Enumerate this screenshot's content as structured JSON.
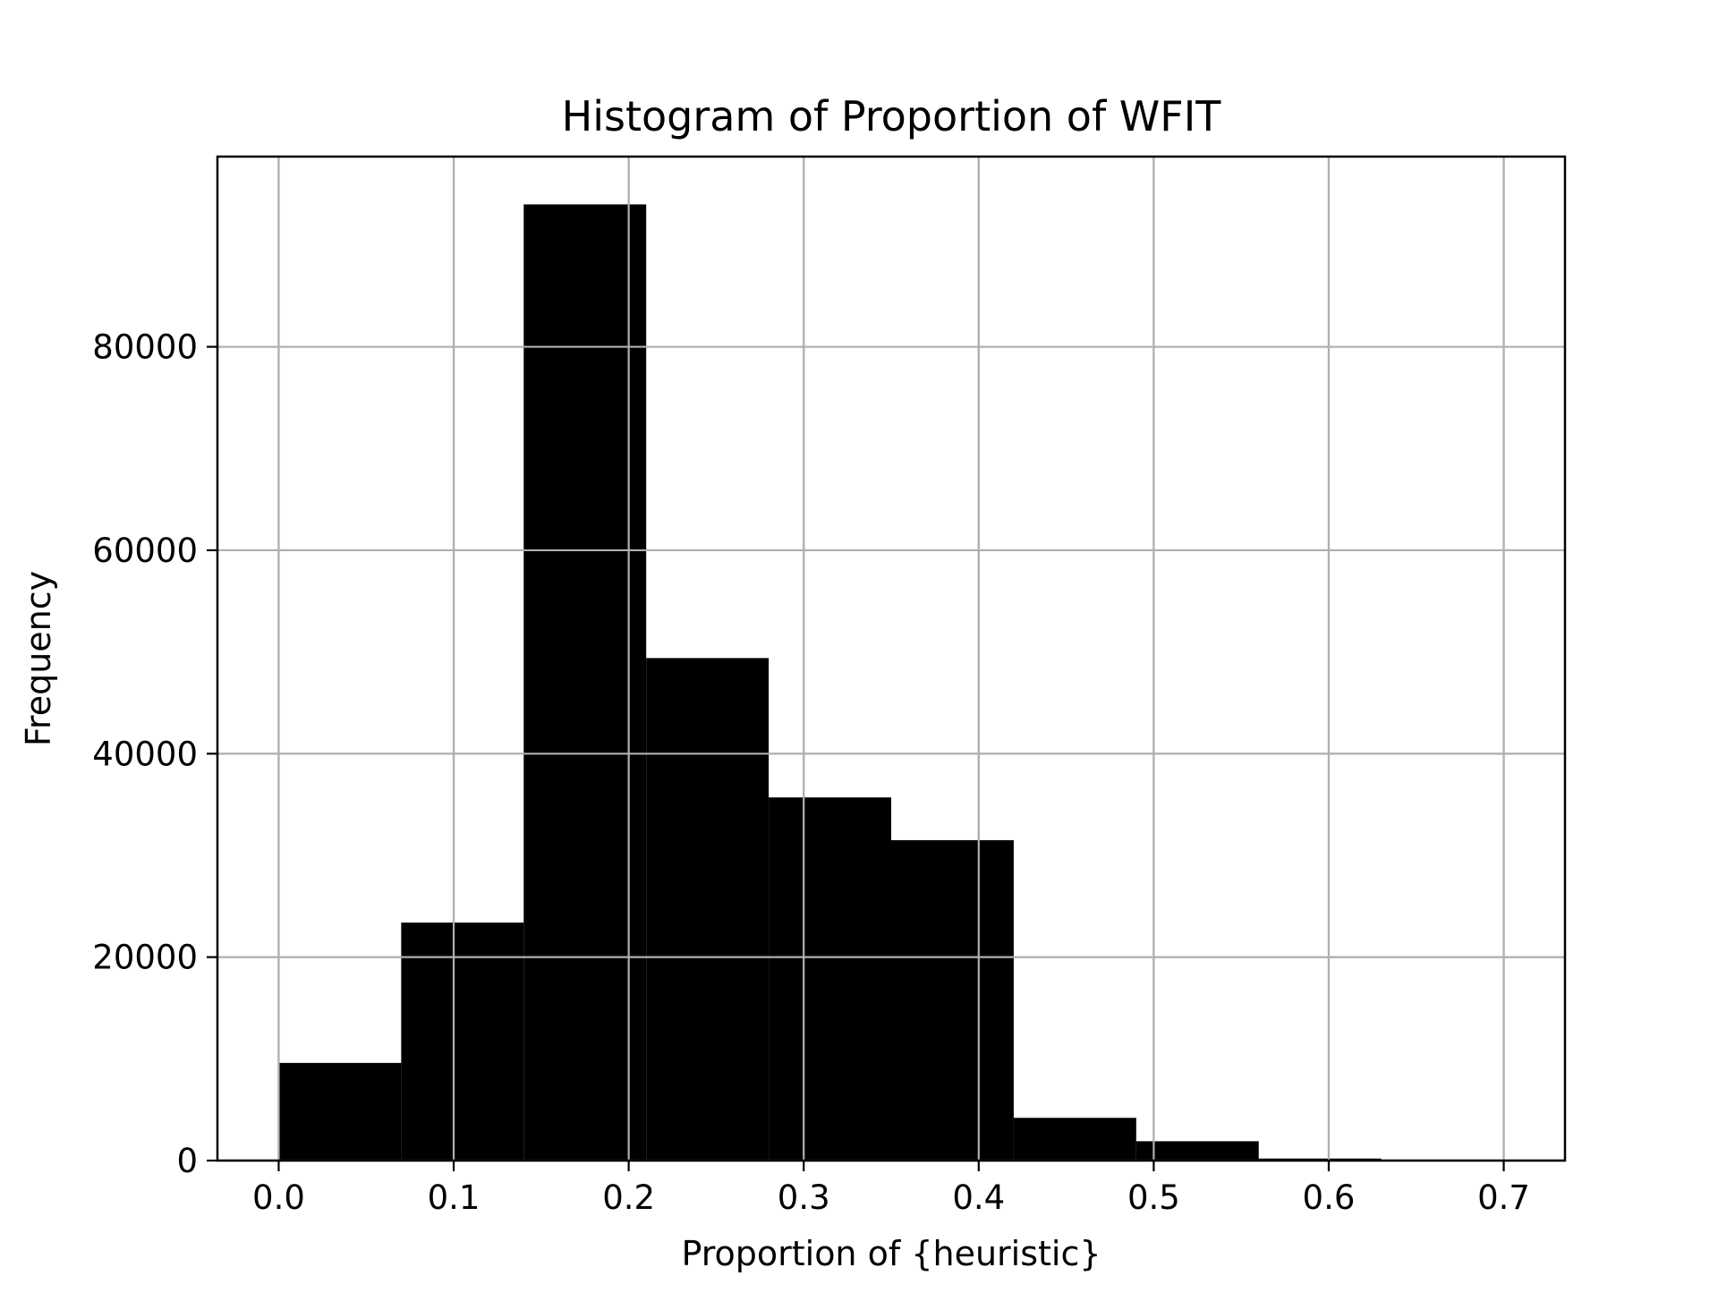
{
  "chart_data": {
    "type": "bar",
    "title": "Histogram of Proportion of WFIT",
    "xlabel": "Proportion of {heuristic}",
    "ylabel": "Frequency",
    "bins": [
      {
        "x0": 0.0,
        "x1": 0.07,
        "value": 9600
      },
      {
        "x0": 0.07,
        "x1": 0.14,
        "value": 23400
      },
      {
        "x0": 0.14,
        "x1": 0.21,
        "value": 94000
      },
      {
        "x0": 0.21,
        "x1": 0.28,
        "value": 49400
      },
      {
        "x0": 0.28,
        "x1": 0.35,
        "value": 35700
      },
      {
        "x0": 0.35,
        "x1": 0.42,
        "value": 31500
      },
      {
        "x0": 0.42,
        "x1": 0.49,
        "value": 4200
      },
      {
        "x0": 0.49,
        "x1": 0.56,
        "value": 1900
      },
      {
        "x0": 0.56,
        "x1": 0.63,
        "value": 200
      },
      {
        "x0": 0.63,
        "x1": 0.7,
        "value": 50
      }
    ],
    "xlim": [
      -0.035,
      0.735
    ],
    "ylim": [
      0,
      98700
    ],
    "xticks": [
      "0.0",
      "0.1",
      "0.2",
      "0.3",
      "0.4",
      "0.5",
      "0.6",
      "0.7"
    ],
    "xtick_values": [
      0.0,
      0.1,
      0.2,
      0.3,
      0.4,
      0.5,
      0.6,
      0.7
    ],
    "yticks": [
      "0",
      "20000",
      "40000",
      "60000",
      "80000"
    ],
    "ytick_values": [
      0,
      20000,
      40000,
      60000,
      80000
    ],
    "grid": true,
    "bar_color": "#000000",
    "grid_color": "#b0b0b0"
  }
}
